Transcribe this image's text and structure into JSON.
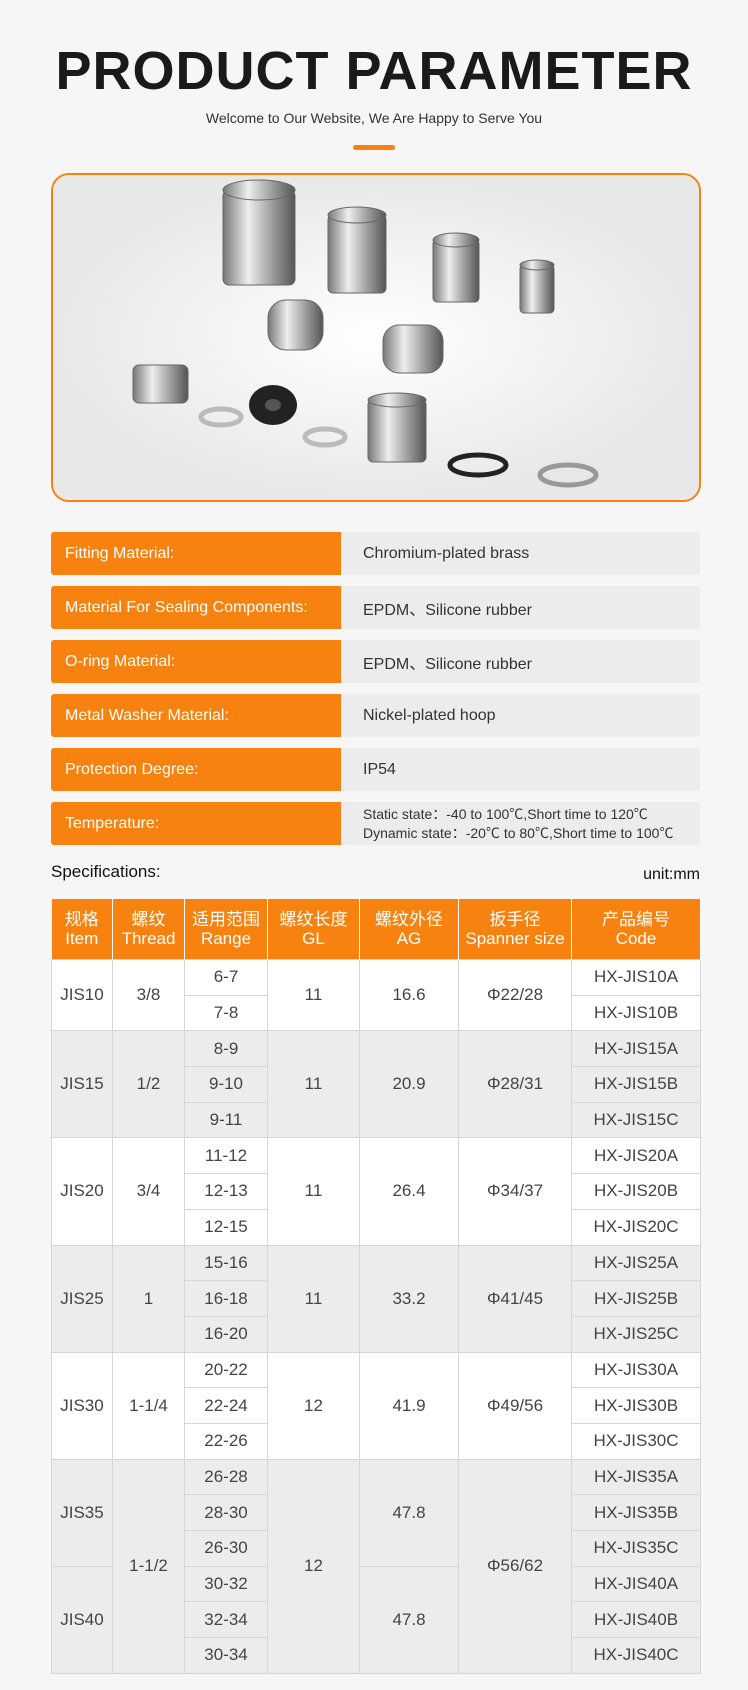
{
  "header": {
    "title": "PRODUCT PARAMETER",
    "subtitle": "Welcome to Our Website, We Are Happy to Serve You"
  },
  "params": [
    {
      "label": "Fitting Material:",
      "value": [
        "Chromium-plated brass"
      ]
    },
    {
      "label": "Material For Sealing Components:",
      "value": [
        "EPDM、Silicone rubber"
      ]
    },
    {
      "label": "O-ring Material:",
      "value": [
        "EPDM、Silicone rubber"
      ]
    },
    {
      "label": "Metal Washer Material:",
      "value": [
        "Nickel-plated hoop"
      ]
    },
    {
      "label": "Protection Degree:",
      "value": [
        "IP54"
      ]
    },
    {
      "label": "Temperature:",
      "value": [
        "Static state：-40 to 100℃,Short time to 120℃",
        "Dynamic state：-20℃ to 80℃,Short time to 100℃"
      ]
    }
  ],
  "specs": {
    "title": "Specifications:",
    "unit": "unit:mm",
    "columns": [
      {
        "zh": "规格",
        "en": "Item"
      },
      {
        "zh": "螺纹",
        "en": "Thread"
      },
      {
        "zh": "适用范围",
        "en": "Range"
      },
      {
        "zh": "螺纹长度",
        "en": "GL"
      },
      {
        "zh": "螺纹外径",
        "en": "AG"
      },
      {
        "zh": "扳手径",
        "en": "Spanner size"
      },
      {
        "zh": "产品编号",
        "en": "Code"
      }
    ],
    "groups": [
      {
        "thread": "3/8",
        "gl": 11,
        "spanner": "Φ22/28",
        "items": [
          {
            "item": "JIS10",
            "ag": 16.6,
            "rows": [
              {
                "range": "6-7",
                "code": "HX-JIS10A"
              },
              {
                "range": "7-8",
                "code": "HX-JIS10B"
              }
            ]
          }
        ]
      },
      {
        "thread": "1/2",
        "gl": 11,
        "spanner": "Φ28/31",
        "items": [
          {
            "item": "JIS15",
            "ag": 20.9,
            "rows": [
              {
                "range": "8-9",
                "code": "HX-JIS15A"
              },
              {
                "range": "9-10",
                "code": "HX-JIS15B"
              },
              {
                "range": "9-11",
                "code": "HX-JIS15C"
              }
            ]
          }
        ]
      },
      {
        "thread": "3/4",
        "gl": 11,
        "spanner": "Φ34/37",
        "items": [
          {
            "item": "JIS20",
            "ag": 26.4,
            "rows": [
              {
                "range": "11-12",
                "code": "HX-JIS20A"
              },
              {
                "range": "12-13",
                "code": "HX-JIS20B"
              },
              {
                "range": "12-15",
                "code": "HX-JIS20C"
              }
            ]
          }
        ]
      },
      {
        "thread": "1",
        "gl": 11,
        "spanner": "Φ41/45",
        "items": [
          {
            "item": "JIS25",
            "ag": 33.2,
            "rows": [
              {
                "range": "15-16",
                "code": "HX-JIS25A"
              },
              {
                "range": "16-18",
                "code": "HX-JIS25B"
              },
              {
                "range": "16-20",
                "code": "HX-JIS25C"
              }
            ]
          }
        ]
      },
      {
        "thread": "1-1/4",
        "gl": 12,
        "spanner": "Φ49/56",
        "items": [
          {
            "item": "JIS30",
            "ag": 41.9,
            "rows": [
              {
                "range": "20-22",
                "code": "HX-JIS30A"
              },
              {
                "range": "22-24",
                "code": "HX-JIS30B"
              },
              {
                "range": "22-26",
                "code": "HX-JIS30C"
              }
            ]
          }
        ]
      },
      {
        "thread": "1-1/2",
        "gl": 12,
        "spanner": "Φ56/62",
        "items": [
          {
            "item": "JIS35",
            "ag": 47.8,
            "rows": [
              {
                "range": "26-28",
                "code": "HX-JIS35A"
              },
              {
                "range": "28-30",
                "code": "HX-JIS35B"
              },
              {
                "range": "26-30",
                "code": "HX-JIS35C"
              }
            ]
          },
          {
            "item": "JIS40",
            "ag": 47.8,
            "rows": [
              {
                "range": "30-32",
                "code": "HX-JIS40A"
              },
              {
                "range": "32-34",
                "code": "HX-JIS40B"
              },
              {
                "range": "30-34",
                "code": "HX-JIS40C"
              }
            ]
          }
        ]
      }
    ]
  }
}
